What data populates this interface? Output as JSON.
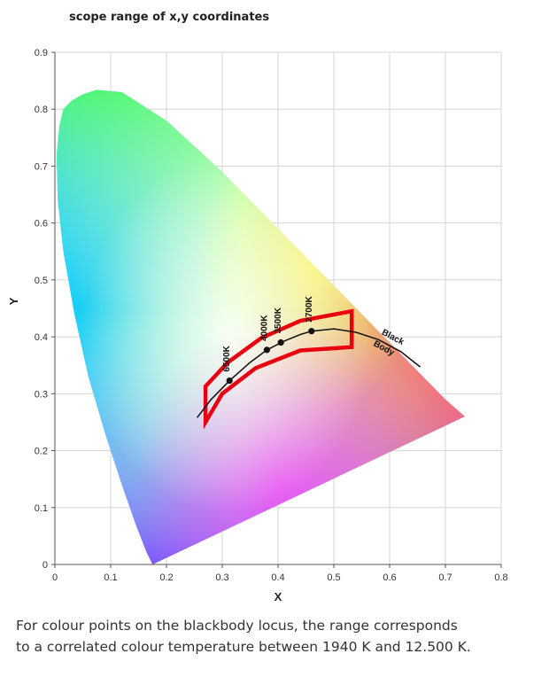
{
  "title": "scope range of x,y coordinates",
  "caption": {
    "line1": "For colour points on the blackbody locus, the range corresponds",
    "line2": "to a correlated colour temperature between 1940 K and 12.500 K."
  },
  "chart_data": {
    "type": "scatter",
    "title": "scope range of x,y coordinates",
    "xlabel": "X",
    "ylabel": "Y",
    "xlim": [
      0,
      0.8
    ],
    "ylim": [
      0,
      0.9
    ],
    "xticks": [
      "0",
      "0.1",
      "0.2",
      "0.3",
      "0.4",
      "0.5",
      "0.6",
      "0.7",
      "0.8"
    ],
    "yticks": [
      "0",
      "0.1",
      "0.2",
      "0.3",
      "0.4",
      "0.5",
      "0.6",
      "0.7",
      "0.8",
      "0.9"
    ],
    "grid": true,
    "spectral_locus": {
      "x": [
        0.175,
        0.165,
        0.145,
        0.12,
        0.09,
        0.06,
        0.035,
        0.015,
        0.005,
        0.003,
        0.008,
        0.015,
        0.03,
        0.05,
        0.075,
        0.12,
        0.2,
        0.3,
        0.4,
        0.5,
        0.6,
        0.7,
        0.735
      ],
      "y": [
        0.0,
        0.02,
        0.07,
        0.14,
        0.23,
        0.33,
        0.44,
        0.55,
        0.64,
        0.72,
        0.77,
        0.8,
        0.815,
        0.826,
        0.834,
        0.83,
        0.78,
        0.69,
        0.59,
        0.49,
        0.39,
        0.29,
        0.26
      ]
    },
    "blackbody_locus": {
      "label": "Black Body",
      "x": [
        0.255,
        0.28,
        0.313,
        0.35,
        0.38,
        0.41,
        0.44,
        0.46,
        0.5,
        0.54,
        0.58,
        0.62,
        0.655
      ],
      "y": [
        0.258,
        0.29,
        0.323,
        0.355,
        0.377,
        0.392,
        0.404,
        0.41,
        0.414,
        0.408,
        0.395,
        0.374,
        0.347
      ]
    },
    "points": [
      {
        "label": "6500K",
        "x": 0.313,
        "y": 0.323
      },
      {
        "label": "4000K",
        "x": 0.38,
        "y": 0.377
      },
      {
        "label": "3500K",
        "x": 0.405,
        "y": 0.39
      },
      {
        "label": "2700K",
        "x": 0.46,
        "y": 0.41
      }
    ],
    "scope_region": {
      "x": [
        0.27,
        0.31,
        0.37,
        0.44,
        0.532,
        0.532,
        0.44,
        0.36,
        0.3,
        0.27
      ],
      "y": [
        0.313,
        0.355,
        0.398,
        0.428,
        0.445,
        0.382,
        0.376,
        0.345,
        0.3,
        0.25
      ],
      "color": "#e8000f"
    }
  }
}
